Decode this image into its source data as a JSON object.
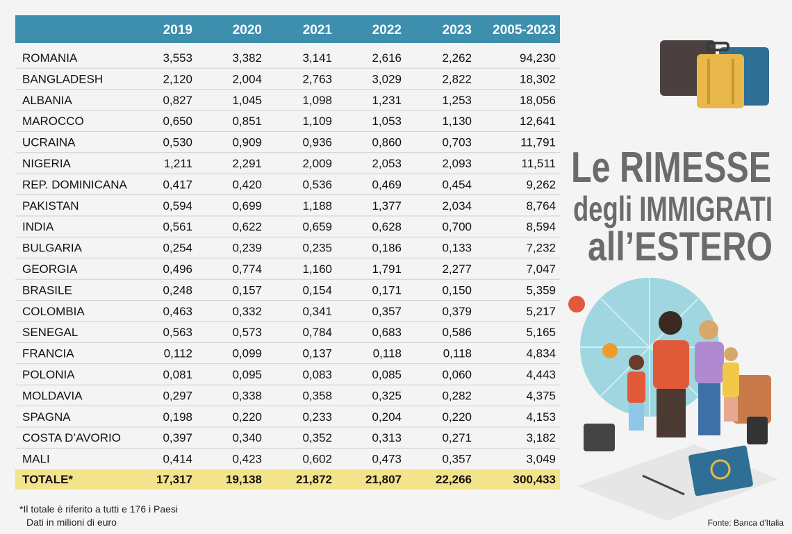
{
  "table": {
    "columns": [
      "2019",
      "2020",
      "2021",
      "2022",
      "2023",
      "2005-2023"
    ],
    "rows": [
      [
        "ROMANIA",
        "3,553",
        "3,382",
        "3,141",
        "2,616",
        "2,262",
        "94,230"
      ],
      [
        "BANGLADESH",
        "2,120",
        "2,004",
        "2,763",
        "3,029",
        "2,822",
        "18,302"
      ],
      [
        "ALBANIA",
        "0,827",
        "1,045",
        "1,098",
        "1,231",
        "1,253",
        "18,056"
      ],
      [
        "MAROCCO",
        "0,650",
        "0,851",
        "1,109",
        "1,053",
        "1,130",
        "12,641"
      ],
      [
        "UCRAINA",
        "0,530",
        "0,909",
        "0,936",
        "0,860",
        "0,703",
        "11,791"
      ],
      [
        "NIGERIA",
        "1,211",
        "2,291",
        "2,009",
        "2,053",
        "2,093",
        "11,511"
      ],
      [
        "REP. DOMINICANA",
        "0,417",
        "0,420",
        "0,536",
        "0,469",
        "0,454",
        "9,262"
      ],
      [
        "PAKISTAN",
        "0,594",
        "0,699",
        "1,188",
        "1,377",
        "2,034",
        "8,764"
      ],
      [
        "INDIA",
        "0,561",
        "0,622",
        "0,659",
        "0,628",
        "0,700",
        "8,594"
      ],
      [
        "BULGARIA",
        "0,254",
        "0,239",
        "0,235",
        "0,186",
        "0,133",
        "7,232"
      ],
      [
        "GEORGIA",
        "0,496",
        "0,774",
        "1,160",
        "1,791",
        "2,277",
        "7,047"
      ],
      [
        "BRASILE",
        "0,248",
        "0,157",
        "0,154",
        "0,171",
        "0,150",
        "5,359"
      ],
      [
        "COLOMBIA",
        "0,463",
        "0,332",
        "0,341",
        "0,357",
        "0,379",
        "5,217"
      ],
      [
        "SENEGAL",
        "0,563",
        "0,573",
        "0,784",
        "0,683",
        "0,586",
        "5,165"
      ],
      [
        "FRANCIA",
        "0,112",
        "0,099",
        "0,137",
        "0,118",
        "0,118",
        "4,834"
      ],
      [
        "POLONIA",
        "0,081",
        "0,095",
        "0,083",
        "0,085",
        "0,060",
        "4,443"
      ],
      [
        "MOLDAVIA",
        "0,297",
        "0,338",
        "0,358",
        "0,325",
        "0,282",
        "4,375"
      ],
      [
        "SPAGNA",
        "0,198",
        "0,220",
        "0,233",
        "0,204",
        "0,220",
        "4,153"
      ],
      [
        "COSTA D’AVORIO",
        "0,397",
        "0,340",
        "0,352",
        "0,313",
        "0,271",
        "3,182"
      ],
      [
        "MALI",
        "0,414",
        "0,423",
        "0,602",
        "0,473",
        "0,357",
        "3,049"
      ]
    ],
    "total": [
      "TOTALE*",
      "17,317",
      "19,138",
      "21,872",
      "21,807",
      "22,266",
      "300,433"
    ]
  },
  "title": [
    "Le RIMESSE",
    "degli IMMIGRATI",
    "all’ESTERO"
  ],
  "footnote": "*Il totale è riferito a tutti e 176 i Paesi",
  "unit_note": "Dati in milioni di euro",
  "source": "Fonte: Banca d’Italia"
}
